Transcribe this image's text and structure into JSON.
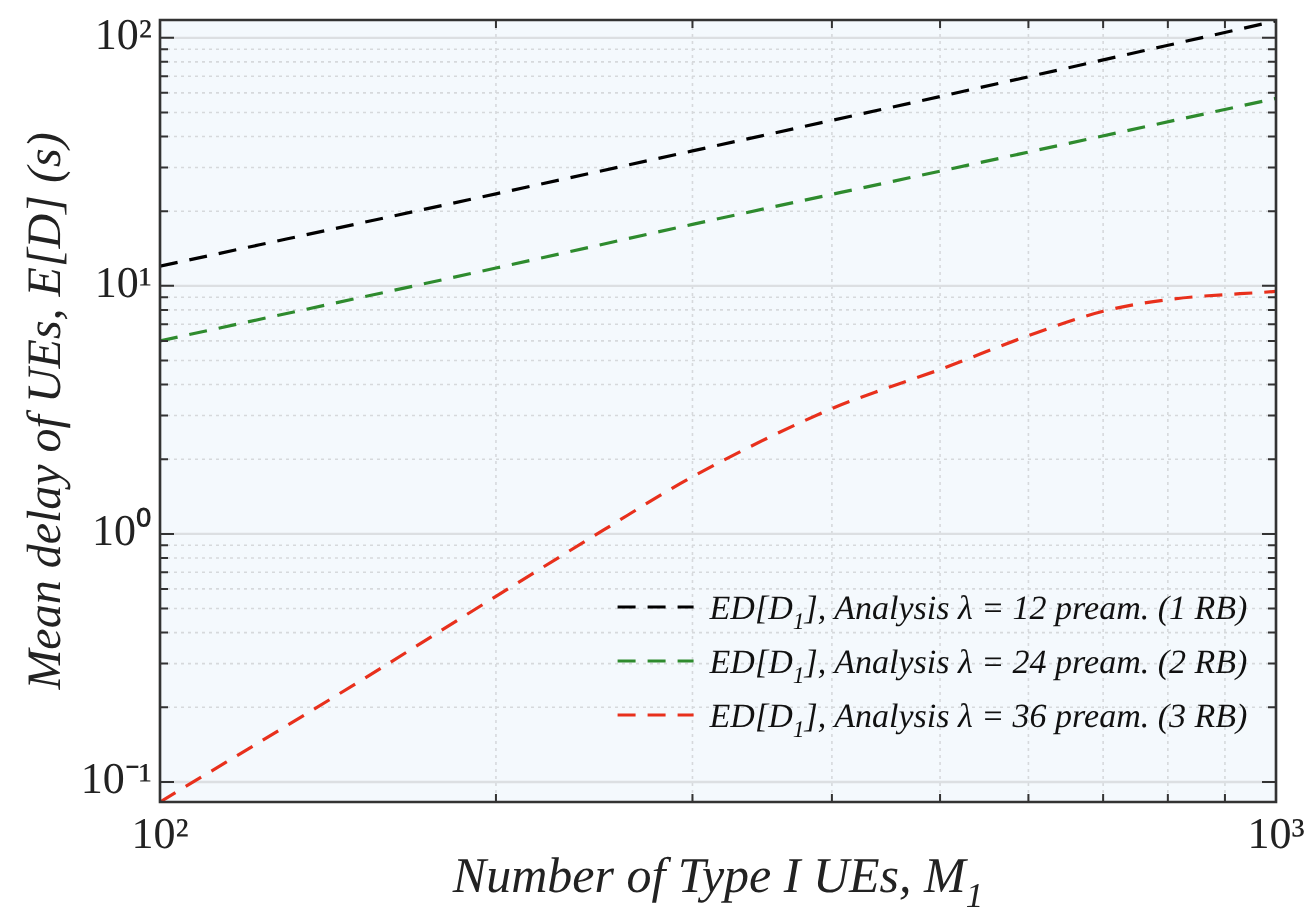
{
  "chart_data": {
    "type": "line",
    "xlabel": "Number of Type I UEs, M$_{1}$",
    "ylabel": "Mean delay of UEs, E[D] (s)",
    "log": "xy",
    "xlim": [
      100,
      1000
    ],
    "ylim": [
      0.083,
      118
    ],
    "xticks": [
      {
        "value": 100,
        "label": "10²"
      },
      {
        "value": 200,
        "label": null
      },
      {
        "value": 300,
        "label": null
      },
      {
        "value": 400,
        "label": null
      },
      {
        "value": 500,
        "label": null
      },
      {
        "value": 600,
        "label": null
      },
      {
        "value": 700,
        "label": null
      },
      {
        "value": 800,
        "label": null
      },
      {
        "value": 900,
        "label": null
      },
      {
        "value": 1000,
        "label": "10³"
      }
    ],
    "yticks": [
      {
        "value": 0.1,
        "label": "10⁻¹"
      },
      {
        "value": 0.2,
        "label": null
      },
      {
        "value": 0.3,
        "label": null
      },
      {
        "value": 0.4,
        "label": null
      },
      {
        "value": 0.5,
        "label": null
      },
      {
        "value": 0.6,
        "label": null
      },
      {
        "value": 0.7,
        "label": null
      },
      {
        "value": 0.8,
        "label": null
      },
      {
        "value": 0.9,
        "label": null
      },
      {
        "value": 1,
        "label": "10⁰"
      },
      {
        "value": 2,
        "label": null
      },
      {
        "value": 3,
        "label": null
      },
      {
        "value": 4,
        "label": null
      },
      {
        "value": 5,
        "label": null
      },
      {
        "value": 6,
        "label": null
      },
      {
        "value": 7,
        "label": null
      },
      {
        "value": 8,
        "label": null
      },
      {
        "value": 9,
        "label": null
      },
      {
        "value": 10,
        "label": "10¹"
      },
      {
        "value": 20,
        "label": null
      },
      {
        "value": 30,
        "label": null
      },
      {
        "value": 40,
        "label": null
      },
      {
        "value": 50,
        "label": null
      },
      {
        "value": 60,
        "label": null
      },
      {
        "value": 70,
        "label": null
      },
      {
        "value": 80,
        "label": null
      },
      {
        "value": 90,
        "label": null
      },
      {
        "value": 100,
        "label": "10²"
      }
    ],
    "x": [
      100,
      150,
      200,
      250,
      300,
      400,
      450,
      500,
      600,
      700,
      800,
      1000
    ],
    "series": [
      {
        "name": "ED[D$_{1}$], Analysis λ = 12 pream. (1 RB)",
        "color": "#000000",
        "x": [
          100,
          200,
          300,
          500,
          1000
        ],
        "values": [
          12,
          23.5,
          35,
          58,
          117
        ]
      },
      {
        "name": "ED[D$_{1}$], Analysis λ = 24 pream. (2 RB)",
        "color": "#2e8b2e",
        "x": [
          100,
          200,
          300,
          500,
          1000
        ],
        "values": [
          6,
          11.8,
          17.7,
          29,
          57
        ]
      },
      {
        "name": "ED[D$_{1}$], Analysis λ = 36 pream. (3 RB)",
        "color": "#e8301c",
        "values": [
          0.083,
          0.25,
          0.56,
          1.04,
          1.7,
          3.2,
          3.9,
          4.6,
          6.3,
          7.9,
          8.8,
          9.5
        ]
      }
    ],
    "grid": true,
    "legend": "bottom right",
    "marker": "none",
    "line_style": "dashed"
  }
}
